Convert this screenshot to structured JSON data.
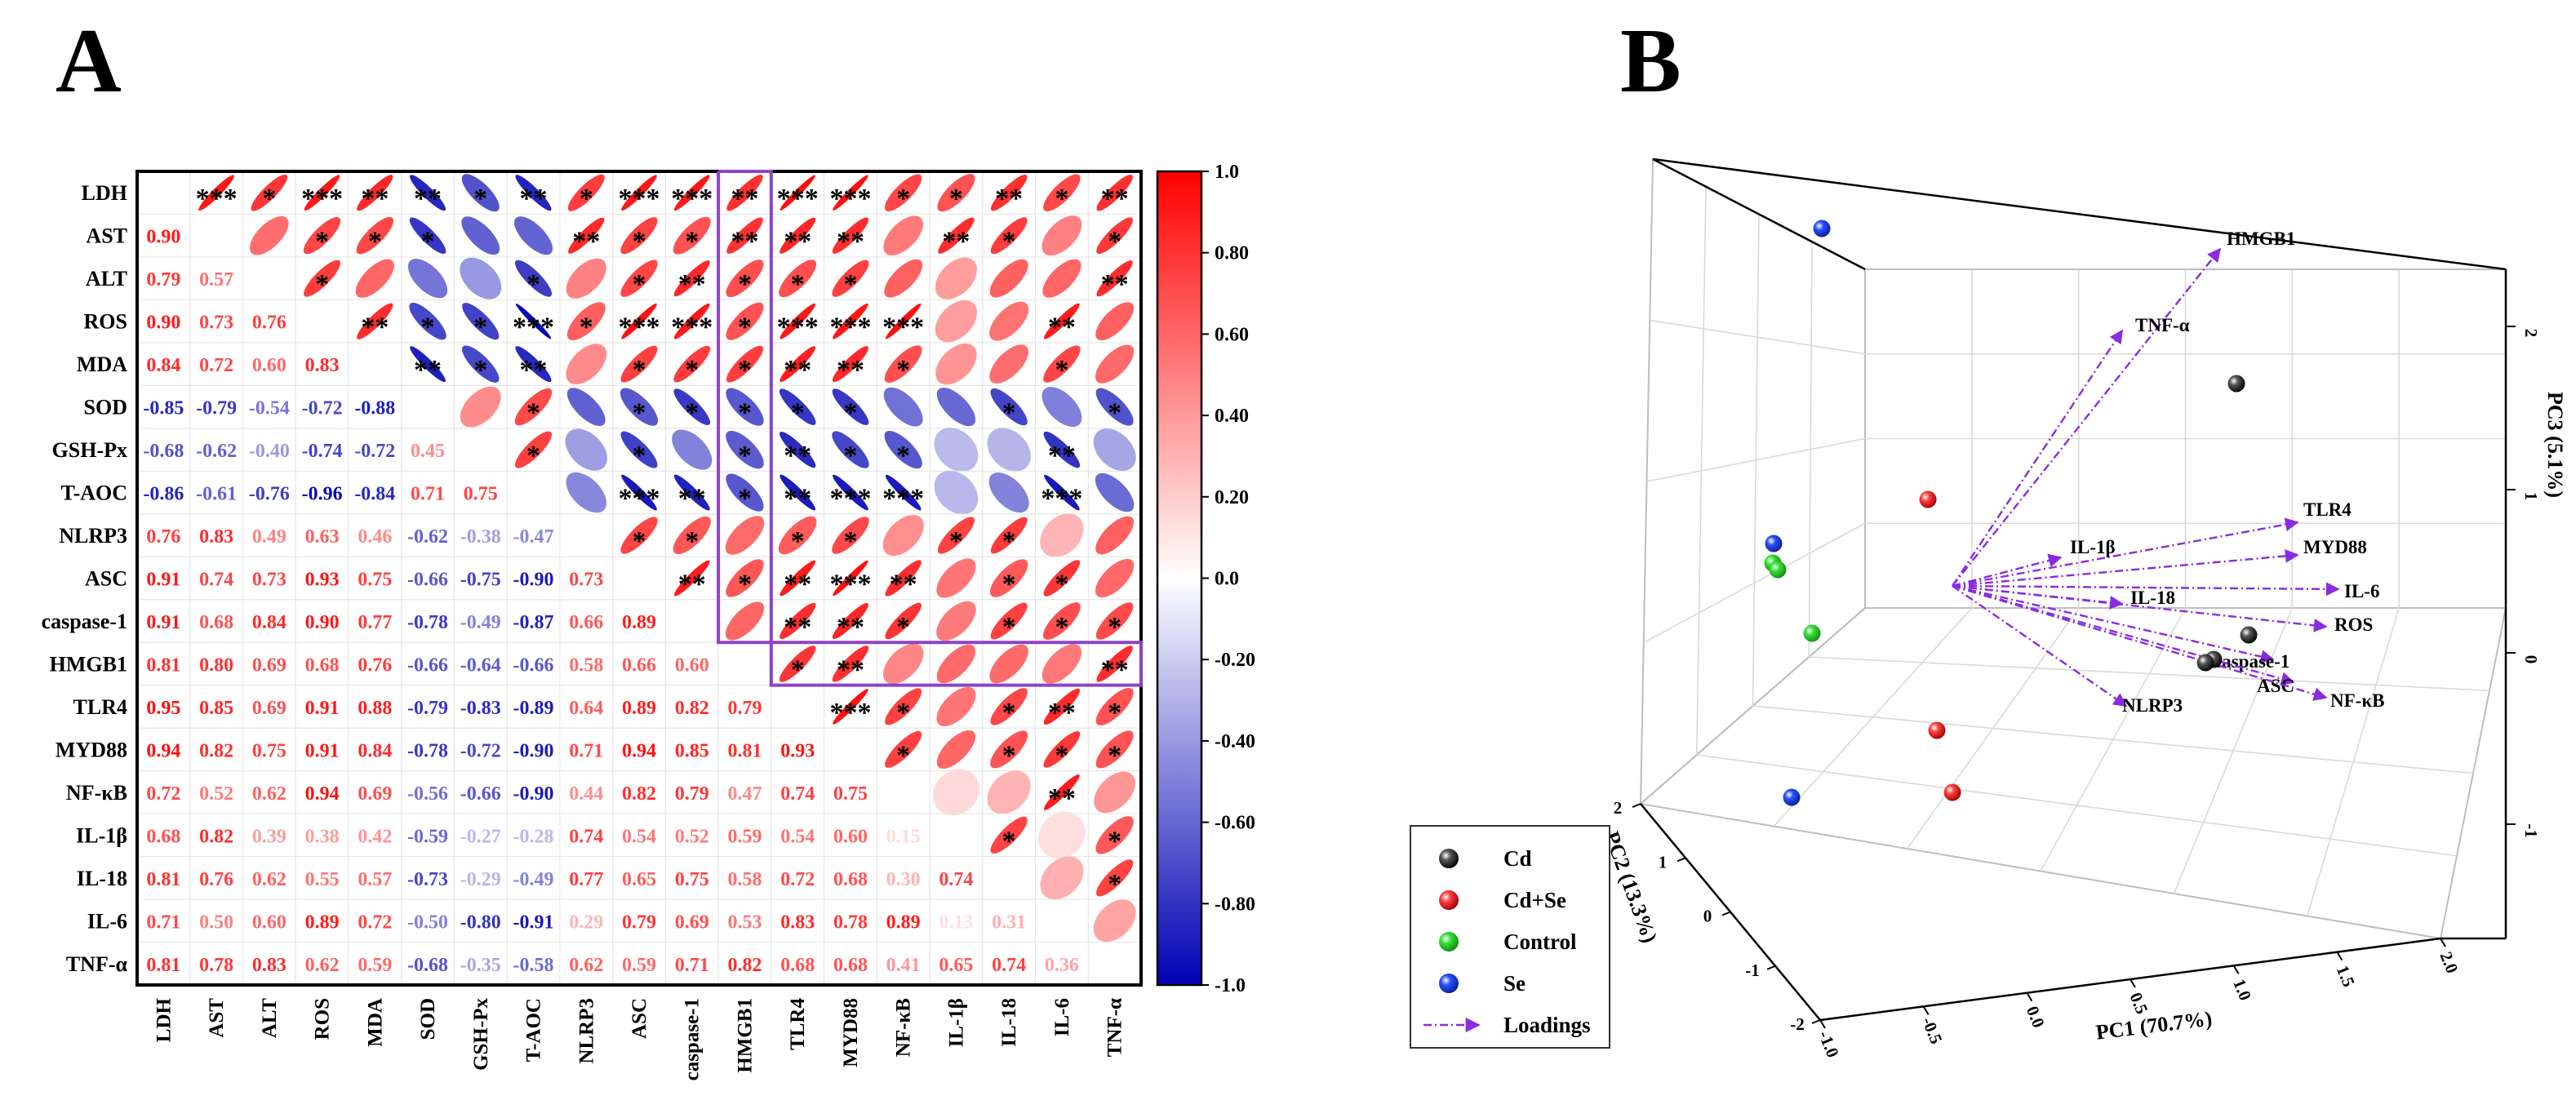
{
  "panels": {
    "a": {
      "letter": "A"
    },
    "b": {
      "letter": "B"
    }
  },
  "chart_data": [
    {
      "type": "heatmap",
      "panel": "A",
      "variables": [
        "LDH",
        "AST",
        "ALT",
        "ROS",
        "MDA",
        "SOD",
        "GSH-Px",
        "T-AOC",
        "NLRP3",
        "ASC",
        "caspase-1",
        "HMGB1",
        "TLR4",
        "MYD88",
        "NF-κB",
        "IL-1β",
        "IL-18",
        "IL-6",
        "TNF-α"
      ],
      "lower_triangle_values": [
        [],
        [
          "0.90"
        ],
        [
          "0.79",
          "0.57"
        ],
        [
          "0.90",
          "0.73",
          "0.76"
        ],
        [
          "0.84",
          "0.72",
          "0.60",
          "0.83"
        ],
        [
          "-0.85",
          "-0.79",
          "-0.54",
          "-0.72",
          "-0.88"
        ],
        [
          "-0.68",
          "-0.62",
          "-0.40",
          "-0.74",
          "-0.72",
          "0.45"
        ],
        [
          "-0.86",
          "-0.61",
          "-0.76",
          "-0.96",
          "-0.84",
          "0.71",
          "0.75"
        ],
        [
          "0.76",
          "0.83",
          "0.49",
          "0.63",
          "0.46",
          "-0.62",
          "-0.38",
          "-0.47"
        ],
        [
          "0.91",
          "0.74",
          "0.73",
          "0.93",
          "0.75",
          "-0.66",
          "-0.75",
          "-0.90",
          "0.73"
        ],
        [
          "0.91",
          "0.68",
          "0.84",
          "0.90",
          "0.77",
          "-0.78",
          "-0.49",
          "-0.87",
          "0.66",
          "0.89"
        ],
        [
          "0.81",
          "0.80",
          "0.69",
          "0.68",
          "0.76",
          "-0.66",
          "-0.64",
          "-0.66",
          "0.58",
          "0.66",
          "0.60"
        ],
        [
          "0.95",
          "0.85",
          "0.69",
          "0.91",
          "0.88",
          "-0.79",
          "-0.83",
          "-0.89",
          "0.64",
          "0.89",
          "0.82",
          "0.79"
        ],
        [
          "0.94",
          "0.82",
          "0.75",
          "0.91",
          "0.84",
          "-0.78",
          "-0.72",
          "-0.90",
          "0.71",
          "0.94",
          "0.85",
          "0.81",
          "0.93"
        ],
        [
          "0.72",
          "0.52",
          "0.62",
          "0.94",
          "0.69",
          "-0.56",
          "-0.66",
          "-0.90",
          "0.44",
          "0.82",
          "0.79",
          "0.47",
          "0.74",
          "0.75"
        ],
        [
          "0.68",
          "0.82",
          "0.39",
          "0.38",
          "0.42",
          "-0.59",
          "-0.27",
          "-0.28",
          "0.74",
          "0.54",
          "0.52",
          "0.59",
          "0.54",
          "0.60",
          "0.15"
        ],
        [
          "0.81",
          "0.76",
          "0.62",
          "0.55",
          "0.57",
          "-0.73",
          "-0.29",
          "-0.49",
          "0.77",
          "0.65",
          "0.75",
          "0.58",
          "0.72",
          "0.68",
          "0.30",
          "0.74"
        ],
        [
          "0.71",
          "0.50",
          "0.60",
          "0.89",
          "0.72",
          "-0.50",
          "-0.80",
          "-0.91",
          "0.29",
          "0.79",
          "0.69",
          "0.53",
          "0.83",
          "0.78",
          "0.89",
          "0.13",
          "0.31"
        ],
        [
          "0.81",
          "0.78",
          "0.83",
          "0.62",
          "0.59",
          "-0.68",
          "-0.35",
          "-0.58",
          "0.62",
          "0.59",
          "0.71",
          "0.82",
          "0.68",
          "0.68",
          "0.41",
          "0.65",
          "0.74",
          "0.36"
        ]
      ],
      "significance_rule": "|r|>=0.90 -> ***, |r|>=0.80 -> **, |r|>=0.63 -> *",
      "colorbar": {
        "range": [
          -1.0,
          1.0
        ],
        "ticks": [
          "1.0",
          "0.80",
          "0.60",
          "0.40",
          "0.20",
          "0.0",
          "-0.20",
          "-0.40",
          "-0.60",
          "-0.80",
          "-1.0"
        ],
        "colors": {
          "positive": "#ff0000",
          "zero": "#ffffff",
          "negative": "#0000b4"
        }
      },
      "highlight_color": "#8e44c0",
      "highlight": "HMGB1 column and row outlined"
    },
    {
      "type": "scatter",
      "panel": "B",
      "subtype": "3D PCA biplot",
      "xlabel": "PC1 (70.7%)",
      "ylabel": "PC2 (13.3%)",
      "zlabel": "PC3 (5.1%)",
      "x_ticks": [
        "-1.0",
        "-0.5",
        "0.0",
        "0.5",
        "1.0",
        "1.5",
        "2.0"
      ],
      "y_ticks": [
        "2",
        "1",
        "0",
        "-1",
        "-2"
      ],
      "z_ticks": [
        "2",
        "1",
        "0",
        "-1"
      ],
      "loading_color": "#8a2be2",
      "highlighted_label_color": "#ff0000",
      "groups": [
        {
          "name": "Cd",
          "color": "#111111"
        },
        {
          "name": "Cd+Se",
          "color": "#e41a1c"
        },
        {
          "name": "Control",
          "color": "#2ecc40"
        },
        {
          "name": "Se",
          "color": "#1f3fd6"
        }
      ],
      "loadings_legend": "Loadings",
      "loadings": [
        "HMGB1",
        "TNF-α",
        "TLR4",
        "MYD88",
        "IL-1β",
        "IL-6",
        "IL-18",
        "ROS",
        "caspase-1",
        "ASC",
        "NF-κB",
        "NLRP3"
      ]
    }
  ]
}
